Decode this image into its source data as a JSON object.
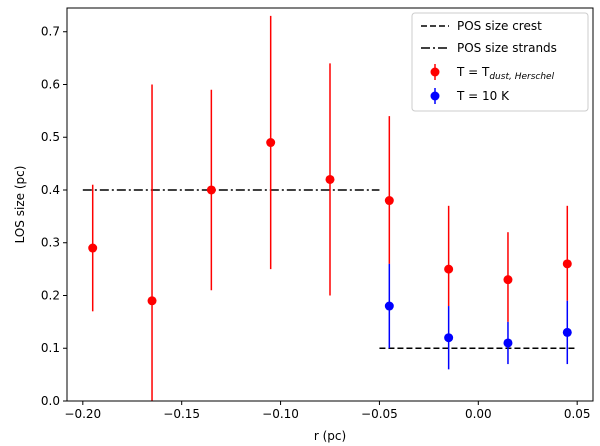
{
  "chart_data": {
    "type": "scatter",
    "xlabel": "r (pc)",
    "ylabel": "LOS size (pc)",
    "xlim": [
      -0.208,
      0.058
    ],
    "ylim": [
      0.0,
      0.745
    ],
    "xticks": [
      -0.2,
      -0.15,
      -0.1,
      -0.05,
      0.0,
      0.05
    ],
    "xtick_labels": [
      "−0.20",
      "−0.15",
      "−0.10",
      "−0.05",
      "0.00",
      "0.05"
    ],
    "yticks": [
      0.0,
      0.1,
      0.2,
      0.3,
      0.4,
      0.5,
      0.6,
      0.7
    ],
    "ytick_labels": [
      "0.0",
      "0.1",
      "0.2",
      "0.3",
      "0.4",
      "0.5",
      "0.6",
      "0.7"
    ],
    "legend_position": "top-right",
    "series": [
      {
        "name": "POS size crest",
        "kind": "line",
        "style": "dashed",
        "color": "#000000",
        "x": [
          -0.05,
          0.05
        ],
        "y": [
          0.1,
          0.1
        ]
      },
      {
        "name": "POS size strands",
        "kind": "line",
        "style": "dashdot",
        "color": "#000000",
        "x": [
          -0.2,
          -0.05
        ],
        "y": [
          0.4,
          0.4
        ]
      },
      {
        "name": "T = T_{dust, Herschel}",
        "kind": "errorbar",
        "color": "#ff0000",
        "points": [
          {
            "x": -0.195,
            "y": 0.29,
            "lo": 0.17,
            "hi": 0.41
          },
          {
            "x": -0.165,
            "y": 0.19,
            "lo": 0.0,
            "hi": 0.6
          },
          {
            "x": -0.135,
            "y": 0.4,
            "lo": 0.21,
            "hi": 0.59
          },
          {
            "x": -0.105,
            "y": 0.49,
            "lo": 0.25,
            "hi": 0.73
          },
          {
            "x": -0.075,
            "y": 0.42,
            "lo": 0.2,
            "hi": 0.64
          },
          {
            "x": -0.045,
            "y": 0.38,
            "lo": 0.26,
            "hi": 0.54
          },
          {
            "x": -0.015,
            "y": 0.25,
            "lo": 0.18,
            "hi": 0.37
          },
          {
            "x": 0.015,
            "y": 0.23,
            "lo": 0.15,
            "hi": 0.32
          },
          {
            "x": 0.045,
            "y": 0.26,
            "lo": 0.19,
            "hi": 0.37
          }
        ]
      },
      {
        "name": "T = 10 K",
        "kind": "errorbar",
        "color": "#0000ff",
        "points": [
          {
            "x": -0.045,
            "y": 0.18,
            "lo": 0.1,
            "hi": 0.26
          },
          {
            "x": -0.015,
            "y": 0.12,
            "lo": 0.06,
            "hi": 0.18
          },
          {
            "x": 0.015,
            "y": 0.11,
            "lo": 0.07,
            "hi": 0.15
          },
          {
            "x": 0.045,
            "y": 0.13,
            "lo": 0.07,
            "hi": 0.19
          }
        ]
      }
    ],
    "legend": {
      "entries": [
        {
          "label": "POS size crest",
          "marker": "dashed-line"
        },
        {
          "label": "POS size strands",
          "marker": "dashdot-line"
        },
        {
          "label_main": "T = T",
          "label_sub": "dust, Herschel",
          "marker": "errorbar-red"
        },
        {
          "label": "T = 10 K",
          "marker": "errorbar-blue"
        }
      ]
    }
  }
}
